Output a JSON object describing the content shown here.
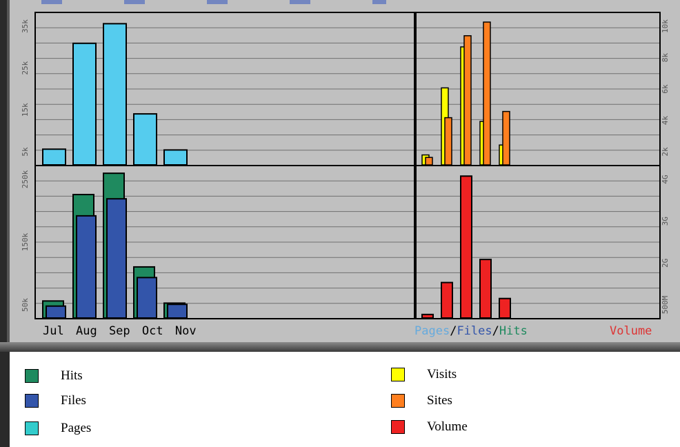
{
  "chart_data": [
    {
      "type": "bar",
      "categories": [
        "Jul",
        "Aug",
        "Sep",
        "Oct",
        "Nov"
      ],
      "series": [
        {
          "name": "Pages",
          "values": [
            4000,
            31000,
            36000,
            13000,
            3800
          ]
        }
      ],
      "ytick_labels": [
        "5k",
        "15k",
        "25k",
        "35k"
      ],
      "ylim": [
        0,
        38000
      ],
      "grid": true,
      "colors": {
        "Pages": "#55ccee"
      }
    },
    {
      "type": "bar",
      "categories": [
        "Jul",
        "Aug",
        "Sep",
        "Oct",
        "Nov"
      ],
      "series": [
        {
          "name": "Hits",
          "values": [
            40000,
            290000,
            340000,
            120000,
            35000
          ]
        },
        {
          "name": "Files",
          "values": [
            28000,
            240000,
            280000,
            95000,
            32000
          ]
        }
      ],
      "ytick_labels": [
        "50k",
        "150k",
        "250k"
      ],
      "ylim": [
        0,
        350000
      ],
      "grid": true,
      "colors": {
        "Hits": "#1f8a5f",
        "Files": "#3355aa"
      }
    },
    {
      "type": "bar",
      "categories": [
        "Jul",
        "Aug",
        "Sep",
        "Oct",
        "Nov"
      ],
      "series": [
        {
          "name": "Visits",
          "values": [
            800,
            6200,
            9500,
            3500,
            1600
          ]
        },
        {
          "name": "Sites",
          "values": [
            600,
            3800,
            10400,
            11500,
            4300
          ]
        }
      ],
      "ytick_labels": [
        "2k",
        "4k",
        "6k",
        "8k",
        "10k"
      ],
      "ylim": [
        0,
        12000
      ],
      "grid": true,
      "colors": {
        "Visits": "#ffff00",
        "Sites": "#ff7f1f"
      }
    },
    {
      "type": "bar",
      "categories": [
        "Jul",
        "Aug",
        "Sep",
        "Oct",
        "Nov"
      ],
      "series": [
        {
          "name": "Volume",
          "values": [
            0.1,
            1.0,
            4.0,
            1.65,
            0.55
          ]
        }
      ],
      "ytick_labels": [
        "500M",
        "2G",
        "3G",
        "4G"
      ],
      "ylim": [
        0,
        4.2
      ],
      "grid": true,
      "colors": {
        "Volume": "#ee2222"
      }
    }
  ],
  "captions": {
    "months": [
      "Jul",
      "Aug",
      "Sep",
      "Oct",
      "Nov"
    ],
    "pages": "Pages",
    "slash1": "/",
    "files": "Files",
    "slash2": "/",
    "hits": "Hits",
    "volume": "Volume",
    "colors": {
      "pages": "#66aadd",
      "files": "#3355aa",
      "hits": "#1f8a5f",
      "volume": "#dd3333"
    }
  },
  "legend": {
    "items": [
      {
        "label": "Hits",
        "color": "#1f8a5f"
      },
      {
        "label": "Files",
        "color": "#3355aa"
      },
      {
        "label": "Pages",
        "color": "#33cccc"
      },
      {
        "label": "Visits",
        "color": "#ffff00"
      },
      {
        "label": "Sites",
        "color": "#ff7f1f"
      },
      {
        "label": "Volume",
        "color": "#ee2222"
      }
    ]
  }
}
